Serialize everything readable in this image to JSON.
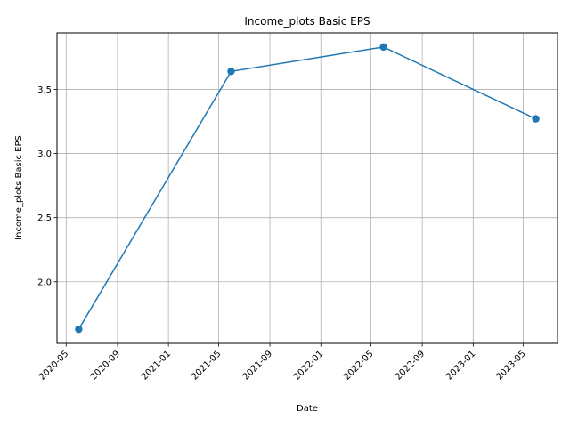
{
  "chart_data": {
    "type": "line",
    "title": "Income_plots Basic EPS",
    "xlabel": "Date",
    "ylabel": "Income_plots Basic EPS",
    "x": [
      "2020-05-31",
      "2021-05-31",
      "2022-05-31",
      "2023-05-31"
    ],
    "series": [
      {
        "values": [
          1.63,
          3.64,
          3.83,
          3.27
        ]
      }
    ],
    "xlim": [
      "2020-04-09",
      "2023-07-22"
    ],
    "ylim": [
      1.52,
      3.94
    ],
    "xticks": [
      "2020-05",
      "2020-09",
      "2021-01",
      "2021-05",
      "2021-09",
      "2022-01",
      "2022-05",
      "2022-09",
      "2023-01",
      "2023-05"
    ],
    "xtick_dates": [
      "2020-05-01",
      "2020-09-01",
      "2021-01-01",
      "2021-05-01",
      "2021-09-01",
      "2022-01-01",
      "2022-05-01",
      "2022-09-01",
      "2023-01-01",
      "2023-05-01"
    ],
    "yticks": [
      2.0,
      2.5,
      3.0,
      3.5
    ],
    "ytick_labels": [
      "2.0",
      "2.5",
      "3.0",
      "3.5"
    ],
    "grid": true,
    "line_color": "#1f77b4",
    "marker": "circle"
  }
}
